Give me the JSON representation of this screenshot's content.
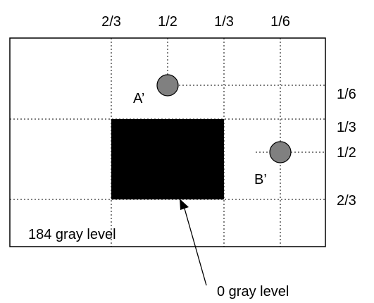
{
  "labels": {
    "top_ticks": [
      "2/3",
      "1/2",
      "1/3",
      "1/6"
    ],
    "right_ticks": [
      "1/6",
      "1/3",
      "1/2",
      "2/3"
    ],
    "point_a": "A’",
    "point_b": "B’",
    "background_level": "184 gray level",
    "square_level": "0 gray level"
  },
  "colors": {
    "background": "#ffffff",
    "dark_square": "#000000",
    "point_fill": "#808080",
    "line": "#000000"
  }
}
